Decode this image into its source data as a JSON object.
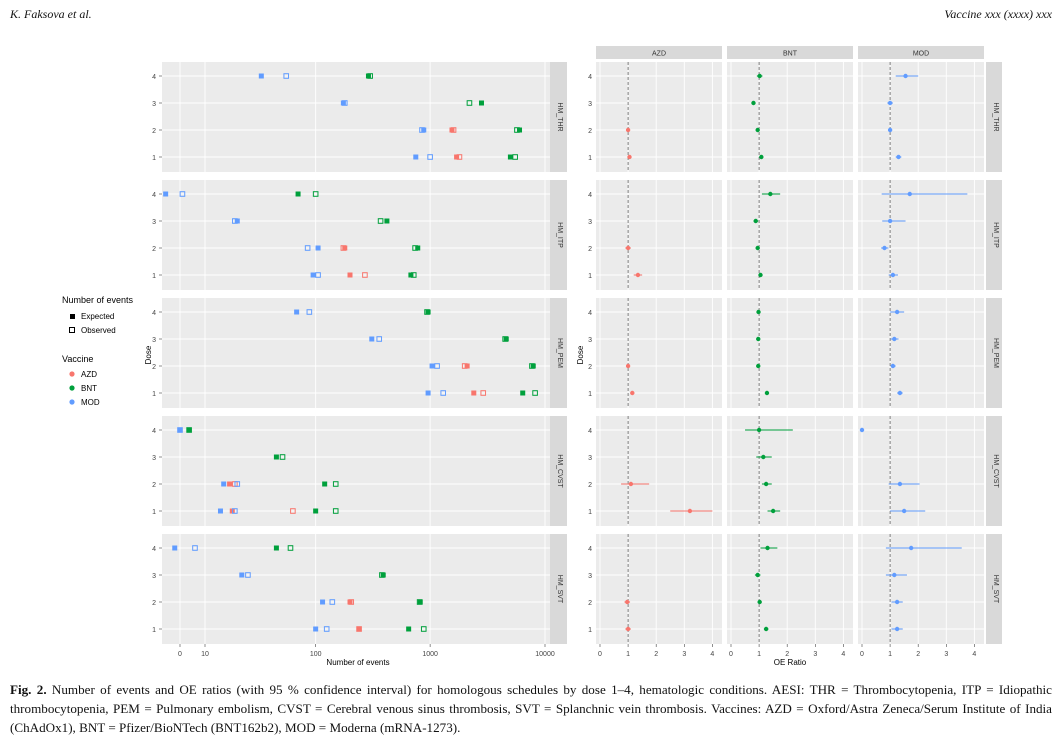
{
  "header": {
    "author": "K. Faksova et al.",
    "journal": "Vaccine xxx (xxxx) xxx"
  },
  "legend": {
    "events_title": "Number of events",
    "events_items": [
      "Expected",
      "Observed"
    ],
    "vaccine_title": "Vaccine",
    "vaccine_items": [
      "AZD",
      "BNT",
      "MOD"
    ]
  },
  "colors": {
    "AZD": "#F8766D",
    "BNT": "#00A03C",
    "MOD": "#619CFF",
    "panel_bg": "#EBEBEB",
    "strip_bg": "#D9D9D9"
  },
  "caption": {
    "label": "Fig. 2.",
    "text": "Number of events and OE ratios (with 95 % confidence interval) for homologous schedules by dose 1–4, hematologic conditions. AESI: THR = Thrombocytopenia, ITP = Idiopathic thrombocytopenia, PEM = Pulmonary embolism, CVST = Cerebral venous sinus thrombosis, SVT = Splanchnic vein thrombosis. Vaccines: AZD = Oxford/Astra Zeneca/Serum Institute of India (ChAdOx1), BNT = Pfizer/BioNTech (BNT162b2), MOD = Moderna (mRNA-1273)."
  },
  "chart_data": [
    {
      "type": "scatter",
      "title": "",
      "xlabel": "Number of events",
      "ylabel": "Dose",
      "xscale": "log10",
      "xlim": [
        0,
        14000
      ],
      "xticks": [
        0,
        10,
        100,
        1000,
        10000
      ],
      "xtick_labels": [
        "0",
        "10",
        "100",
        "1000",
        "10000"
      ],
      "dose_levels": [
        "1",
        "2",
        "3",
        "4"
      ],
      "facets": [
        "HM_THR",
        "HM_ITP",
        "HM_PEM",
        "HM_CVST",
        "HM_SVT"
      ],
      "points": {
        "HM_THR": {
          "AZD": {
            "1": [
              1700,
              1800
            ],
            "2": [
              1550,
              1600
            ],
            "3": null,
            "4": null
          },
          "BNT": {
            "1": [
              5000,
              5500
            ],
            "2": [
              6000,
              5700
            ],
            "3": [
              2800,
              2200
            ],
            "4": [
              290,
              300
            ]
          },
          "MOD": {
            "1": [
              750,
              1000
            ],
            "2": [
              880,
              850
            ],
            "3": [
              175,
              180
            ],
            "4": [
              33,
              55
            ]
          }
        },
        "HM_ITP": {
          "AZD": {
            "1": [
              200,
              270
            ],
            "2": [
              180,
              175
            ],
            "3": null,
            "4": null
          },
          "BNT": {
            "1": [
              680,
              720
            ],
            "2": [
              780,
              740
            ],
            "3": [
              420,
              370
            ],
            "4": [
              70,
              100
            ]
          },
          "MOD": {
            "1": [
              95,
              105
            ],
            "2": [
              105,
              85
            ],
            "3": [
              20,
              19
            ],
            "4": [
              4,
              6
            ]
          }
        },
        "HM_PEM": {
          "AZD": {
            "1": [
              2400,
              2900
            ],
            "2": [
              2100,
              2000
            ],
            "3": null,
            "4": null
          },
          "BNT": {
            "1": [
              6400,
              8200
            ],
            "2": [
              7900,
              7700
            ],
            "3": [
              4600,
              4500
            ],
            "4": [
              960,
              940
            ]
          },
          "MOD": {
            "1": [
              960,
              1300
            ],
            "2": [
              1040,
              1150
            ],
            "3": [
              310,
              360
            ],
            "4": [
              68,
              88
            ]
          }
        },
        "HM_CVST": {
          "AZD": {
            "1": [
              18,
              63
            ],
            "2": [
              17,
              19
            ],
            "3": null,
            "4": null
          },
          "BNT": {
            "1": [
              100,
              150
            ],
            "2": [
              120,
              150
            ],
            "3": [
              45,
              51
            ],
            "4": [
              7,
              7
            ]
          },
          "MOD": {
            "1": [
              14,
              19
            ],
            "2": [
              15,
              20
            ],
            "3": null,
            "4": [
              0,
              0
            ]
          }
        },
        "HM_SVT": {
          "AZD": {
            "1": [
              240,
              240
            ],
            "2": [
              200,
              205
            ],
            "3": null,
            "4": null
          },
          "BNT": {
            "1": [
              650,
              880
            ],
            "2": [
              820,
              810
            ],
            "3": [
              390,
              380
            ],
            "4": [
              45,
              60
            ]
          },
          "MOD": {
            "1": [
              100,
              125
            ],
            "2": [
              115,
              140
            ],
            "3": [
              22,
              25
            ],
            "4": [
              5,
              8
            ]
          }
        }
      },
      "point_format": "[expected, observed]"
    },
    {
      "type": "scatter",
      "title": "",
      "xlabel": "OE Ratio",
      "ylabel": "",
      "xlim": [
        0,
        4.2
      ],
      "xticks": [
        0,
        1,
        2,
        3,
        4
      ],
      "reference_line": 1,
      "columns": [
        "AZD",
        "BNT",
        "MOD"
      ],
      "facets": [
        "HM_THR",
        "HM_ITP",
        "HM_PEM",
        "HM_CVST",
        "HM_SVT"
      ],
      "point_format": "[oe, lower, upper]",
      "estimates": {
        "HM_THR": {
          "AZD": {
            "1": [
              1.05,
              0.98,
              1.12
            ],
            "2": [
              1.0,
              0.95,
              1.05
            ]
          },
          "BNT": {
            "1": [
              1.08,
              1.03,
              1.13
            ],
            "2": [
              0.95,
              0.9,
              1.0
            ],
            "3": [
              0.8,
              0.76,
              0.84
            ],
            "4": [
              1.02,
              0.92,
              1.12
            ]
          },
          "MOD": {
            "1": [
              1.3,
              1.2,
              1.4
            ],
            "2": [
              1.0,
              0.93,
              1.07
            ],
            "3": [
              1.0,
              0.9,
              1.1
            ],
            "4": [
              1.55,
              1.2,
              2.0
            ]
          }
        },
        "HM_ITP": {
          "AZD": {
            "1": [
              1.35,
              1.2,
              1.5
            ],
            "2": [
              1.0,
              0.9,
              1.1
            ]
          },
          "BNT": {
            "1": [
              1.05,
              0.98,
              1.12
            ],
            "2": [
              0.95,
              0.88,
              1.02
            ],
            "3": [
              0.88,
              0.8,
              0.97
            ],
            "4": [
              1.4,
              1.1,
              1.75
            ]
          },
          "MOD": {
            "1": [
              1.1,
              0.95,
              1.28
            ],
            "2": [
              0.8,
              0.68,
              0.94
            ],
            "3": [
              1.0,
              0.72,
              1.55
            ],
            "4": [
              1.7,
              0.7,
              3.75
            ]
          }
        },
        "HM_PEM": {
          "AZD": {
            "1": [
              1.15,
              1.08,
              1.22
            ],
            "2": [
              1.0,
              0.95,
              1.05
            ]
          },
          "BNT": {
            "1": [
              1.28,
              1.22,
              1.34
            ],
            "2": [
              0.97,
              0.93,
              1.01
            ],
            "3": [
              0.97,
              0.93,
              1.01
            ],
            "4": [
              0.98,
              0.92,
              1.04
            ]
          },
          "MOD": {
            "1": [
              1.35,
              1.25,
              1.45
            ],
            "2": [
              1.1,
              1.02,
              1.2
            ],
            "3": [
              1.15,
              1.02,
              1.3
            ],
            "4": [
              1.25,
              1.0,
              1.5
            ]
          }
        },
        "HM_CVST": {
          "AZD": {
            "1": [
              3.2,
              2.5,
              4.0
            ],
            "2": [
              1.1,
              0.75,
              1.75
            ]
          },
          "BNT": {
            "1": [
              1.5,
              1.3,
              1.75
            ],
            "2": [
              1.25,
              1.1,
              1.45
            ],
            "3": [
              1.15,
              0.9,
              1.45
            ],
            "4": [
              1.0,
              0.5,
              2.2
            ]
          },
          "MOD": {
            "1": [
              1.5,
              1.0,
              2.25
            ],
            "2": [
              1.35,
              0.95,
              2.05
            ],
            "4": [
              0.0,
              0.0,
              0.0
            ]
          }
        },
        "HM_SVT": {
          "AZD": {
            "1": [
              1.0,
              0.9,
              1.1
            ],
            "2": [
              0.97,
              0.87,
              1.07
            ]
          },
          "BNT": {
            "1": [
              1.25,
              1.17,
              1.33
            ],
            "2": [
              1.02,
              0.95,
              1.09
            ],
            "3": [
              0.95,
              0.85,
              1.05
            ],
            "4": [
              1.3,
              1.05,
              1.65
            ]
          },
          "MOD": {
            "1": [
              1.25,
              1.05,
              1.45
            ],
            "2": [
              1.25,
              1.05,
              1.45
            ],
            "3": [
              1.15,
              0.85,
              1.6
            ],
            "4": [
              1.75,
              0.85,
              3.55
            ]
          }
        }
      }
    }
  ]
}
